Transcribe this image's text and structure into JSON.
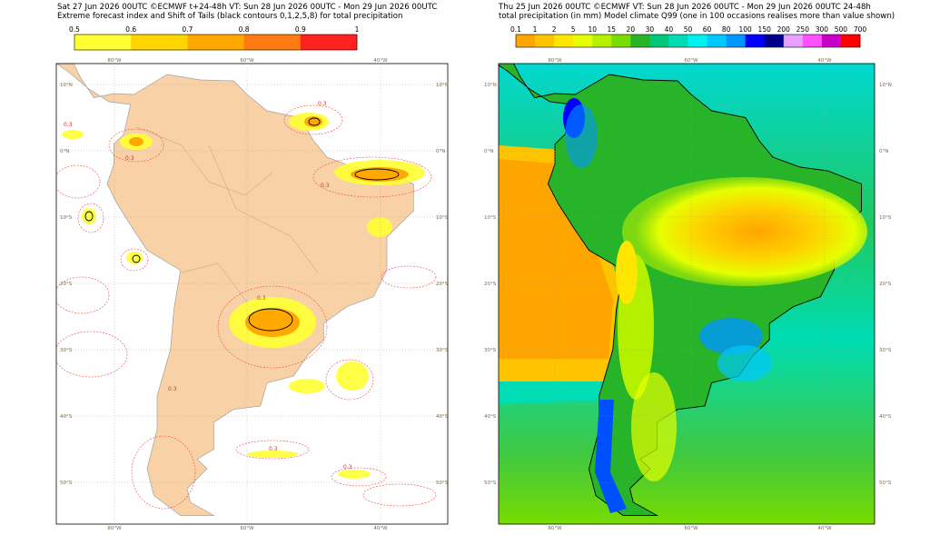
{
  "panels": [
    {
      "header": [
        "Sat 27 Jun 2026 00UTC ©ECMWF t+24-48h  VT: Sun 28 Jun 2026 00UTC - Mon 29 Jun 2026 00UTC",
        "Extreme forecast index and Shift of Tails (black contours 0,1,2,5,8) for total precipitation"
      ],
      "colorbar": {
        "labels": [
          "0.5",
          "0.6",
          "0.7",
          "0.8",
          "0.9",
          "1"
        ],
        "colors": [
          "#ffff33",
          "#ffd500",
          "#ffa800",
          "#ff7a10",
          "#ff2020"
        ]
      },
      "lon_labels": [
        "80°W",
        "60°W",
        "40°W"
      ],
      "lat_labels": [
        "10°N",
        "0°N",
        "10°S",
        "20°S",
        "30°S",
        "40°S",
        "50°S"
      ],
      "contour_labels": [
        "0.3",
        "0.3",
        "0.3",
        "0.3",
        "0.3",
        "0.3",
        "0.3",
        "0.3"
      ]
    },
    {
      "header": [
        "Thu 25 Jun 2026 00UTC ©ECMWF  VT: Sun 28 Jun 2026 00UTC - Mon 29 Jun 2026 00UTC   24-48h",
        "total precipitation (in mm)  Model climate Q99 (one in 100 occasions realises more than value shown)"
      ],
      "colorbar": {
        "labels": [
          "0.1",
          "1",
          "2",
          "5",
          "10",
          "15",
          "20",
          "30",
          "40",
          "50",
          "60",
          "80",
          "100",
          "150",
          "200",
          "250",
          "300",
          "500",
          "700"
        ],
        "colors": [
          "#ffa500",
          "#ffc400",
          "#ffe600",
          "#e6ff00",
          "#b4f000",
          "#78dc00",
          "#28b428",
          "#00c878",
          "#00dcb4",
          "#00f0f0",
          "#00c8ff",
          "#0096ff",
          "#0000ff",
          "#00008c",
          "#e6a0ff",
          "#ff50ff",
          "#c800c8",
          "#ff0000"
        ]
      },
      "lon_labels": [
        "80°W",
        "60°W",
        "40°W"
      ],
      "lat_labels": [
        "10°N",
        "0°N",
        "10°S",
        "20°S",
        "30°S",
        "40°S",
        "50°S"
      ]
    }
  ]
}
